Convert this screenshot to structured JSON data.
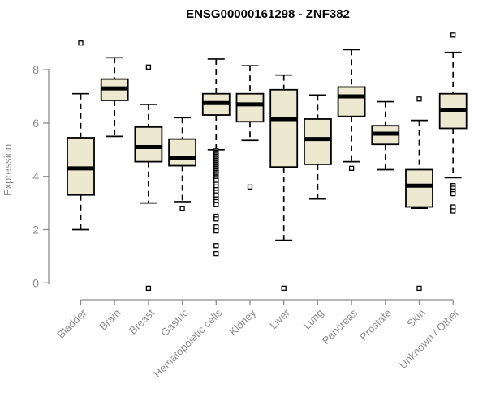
{
  "chart_data": {
    "type": "boxplot",
    "title": "ENSG00000161298 - ZNF382",
    "ylabel": "Expression",
    "xlabel": "",
    "y_ticks": [
      0,
      2,
      4,
      6,
      8
    ],
    "ylim": [
      -0.3,
      9.6
    ],
    "grid": false,
    "legend": "none",
    "categories": [
      "Bladder",
      "Brain",
      "Breast",
      "Gastric",
      "Hematopoietic cells",
      "Kidney",
      "Liver",
      "Lung",
      "Pancreas",
      "Prostate",
      "Skin",
      "Unknown / Other"
    ],
    "series": [
      {
        "category": "Bladder",
        "whisker_low": 2.0,
        "q1": 3.3,
        "median": 4.3,
        "q3": 5.45,
        "whisker_high": 7.1,
        "outliers": [
          9.0
        ]
      },
      {
        "category": "Brain",
        "whisker_low": 5.5,
        "q1": 6.85,
        "median": 7.3,
        "q3": 7.65,
        "whisker_high": 8.45,
        "outliers": []
      },
      {
        "category": "Breast",
        "whisker_low": 3.0,
        "q1": 4.55,
        "median": 5.1,
        "q3": 5.85,
        "whisker_high": 6.7,
        "outliers": [
          8.1,
          -0.2
        ]
      },
      {
        "category": "Gastric",
        "whisker_low": 3.05,
        "q1": 4.4,
        "median": 4.7,
        "q3": 5.4,
        "whisker_high": 6.2,
        "outliers": [
          2.8
        ]
      },
      {
        "category": "Hematopoietic cells",
        "whisker_low": 5.0,
        "q1": 6.3,
        "median": 6.75,
        "q3": 7.1,
        "whisker_high": 8.4,
        "outliers": [
          4.95,
          4.9,
          4.85,
          4.8,
          4.75,
          4.7,
          4.65,
          4.6,
          4.55,
          4.5,
          4.45,
          4.4,
          4.35,
          4.3,
          4.25,
          4.2,
          4.15,
          4.1,
          4.05,
          4.0,
          3.95,
          3.9,
          3.85,
          3.7,
          3.6,
          3.5,
          3.4,
          3.3,
          3.15,
          3.05,
          2.95,
          2.5,
          2.4,
          2.1,
          1.95,
          1.4,
          1.1
        ]
      },
      {
        "category": "Kidney",
        "whisker_low": 5.35,
        "q1": 6.05,
        "median": 6.7,
        "q3": 7.1,
        "whisker_high": 8.15,
        "outliers": [
          3.6
        ]
      },
      {
        "category": "Liver",
        "whisker_low": 1.6,
        "q1": 4.35,
        "median": 6.15,
        "q3": 7.25,
        "whisker_high": 7.8,
        "outliers": [
          -0.2
        ]
      },
      {
        "category": "Lung",
        "whisker_low": 3.15,
        "q1": 4.45,
        "median": 5.4,
        "q3": 6.15,
        "whisker_high": 7.05,
        "outliers": []
      },
      {
        "category": "Pancreas",
        "whisker_low": 4.55,
        "q1": 6.25,
        "median": 7.0,
        "q3": 7.35,
        "whisker_high": 8.75,
        "outliers": [
          4.3
        ]
      },
      {
        "category": "Prostate",
        "whisker_low": 4.25,
        "q1": 5.2,
        "median": 5.6,
        "q3": 5.9,
        "whisker_high": 6.8,
        "outliers": []
      },
      {
        "category": "Skin",
        "whisker_low": 2.8,
        "q1": 2.85,
        "median": 3.65,
        "q3": 4.25,
        "whisker_high": 6.1,
        "outliers": [
          6.9,
          -0.2
        ]
      },
      {
        "category": "Unknown / Other",
        "whisker_low": 3.95,
        "q1": 5.8,
        "median": 6.5,
        "q3": 7.1,
        "whisker_high": 8.65,
        "outliers": [
          9.3,
          3.65,
          3.55,
          3.45,
          3.35,
          2.85,
          2.7
        ]
      }
    ],
    "colors": {
      "box_fill": "#ede8d0",
      "box_border": "#000000",
      "median": "#000000",
      "whisker": "#000000",
      "outlier_border": "#000000",
      "outlier_fill": "#ffffff",
      "axis": "#8c8c8c",
      "tick_label": "#8c8c8c",
      "title": "#000000",
      "background": "#ffffff"
    }
  }
}
